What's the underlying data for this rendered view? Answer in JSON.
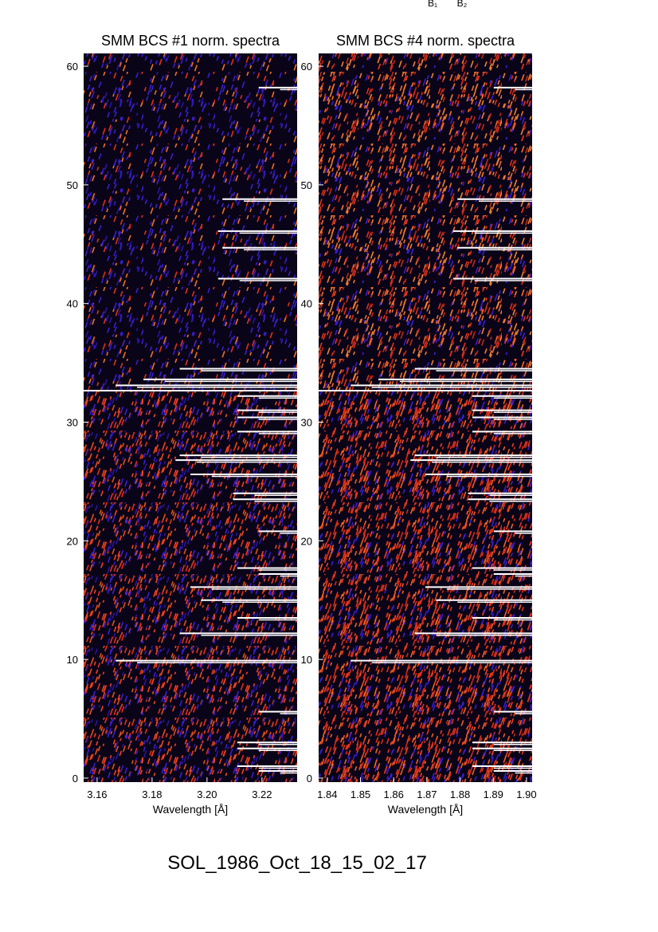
{
  "chart_data": [
    {
      "type": "heatmap",
      "title": "SMM BCS #1 norm. spectra",
      "xlabel": "Wavelength [Å]",
      "xlim": [
        3.1551,
        3.2328
      ],
      "xticks": [
        3.16,
        3.18,
        {
          "value": 3.2,
          "label": "3.20"
        },
        3.22
      ],
      "ylim": [
        -0.34,
        61.08
      ],
      "yticks": [
        0,
        10,
        20,
        30,
        40,
        50,
        60
      ]
    },
    {
      "type": "heatmap",
      "title": "SMM BCS #4 norm. spectra",
      "xlabel": "Wavelength [Å]",
      "xlim": [
        1.8374,
        1.9017
      ],
      "xticks": [
        1.84,
        1.85,
        1.86,
        1.87,
        1.88,
        1.89,
        {
          "value": 1.9,
          "label": "1.90"
        }
      ],
      "ylim": [
        -0.34,
        61.08
      ],
      "yticks": [
        0,
        10,
        20,
        30,
        40,
        50,
        60
      ]
    }
  ],
  "annotations": [
    "B₁",
    "B₂"
  ],
  "footer": "SOL_1986_Oct_18_15_02_17"
}
